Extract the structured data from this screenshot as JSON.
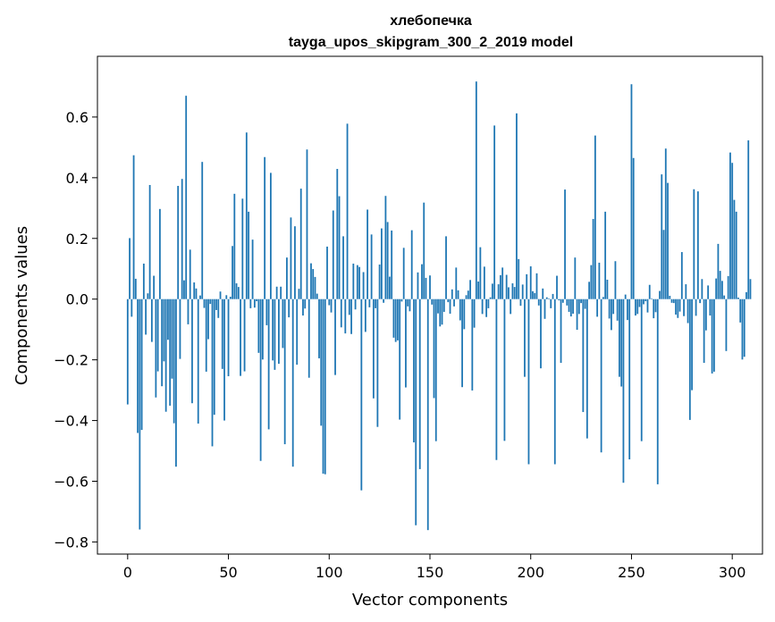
{
  "chart_data": {
    "type": "bar",
    "title": "хлебопечка",
    "subtitle": "tayga_upos_skipgram_300_2_2019 model",
    "xlabel": "Vector components",
    "ylabel": "Components values",
    "xlim": [
      -15,
      315
    ],
    "ylim": [
      -0.84,
      0.8
    ],
    "xticks": [
      0,
      50,
      100,
      150,
      200,
      250,
      300
    ],
    "yticks": [
      -0.8,
      -0.6,
      -0.4,
      -0.2,
      0.0,
      0.2,
      0.4,
      0.6
    ],
    "ytick_labels": [
      "−0.8",
      "−0.6",
      "−0.4",
      "−0.2",
      "0.0",
      "0.2",
      "0.4",
      "0.6"
    ],
    "bar_color": "#1f77b4",
    "grid": false,
    "values": [
      -0.347,
      0.201,
      -0.058,
      0.474,
      0.067,
      -0.441,
      -0.759,
      -0.431,
      0.117,
      -0.117,
      0.019,
      0.376,
      -0.141,
      0.077,
      -0.324,
      -0.238,
      0.297,
      -0.287,
      -0.205,
      -0.371,
      -0.134,
      -0.351,
      -0.262,
      -0.409,
      -0.552,
      0.373,
      -0.197,
      0.396,
      0.062,
      0.67,
      -0.083,
      0.163,
      -0.343,
      0.055,
      0.035,
      -0.41,
      0.012,
      0.452,
      -0.029,
      -0.239,
      -0.132,
      -0.016,
      -0.485,
      -0.381,
      -0.036,
      -0.062,
      0.025,
      -0.23,
      -0.4,
      0.013,
      -0.254,
      0.008,
      0.175,
      0.347,
      0.052,
      0.04,
      -0.253,
      0.331,
      -0.238,
      0.549,
      0.288,
      -0.03,
      0.196,
      -0.028,
      -0.007,
      -0.177,
      -0.533,
      -0.199,
      0.468,
      -0.086,
      -0.429,
      0.416,
      -0.202,
      -0.233,
      0.041,
      -0.213,
      0.041,
      -0.161,
      -0.478,
      0.137,
      -0.06,
      0.269,
      -0.552,
      0.24,
      -0.216,
      0.034,
      0.364,
      -0.054,
      -0.031,
      0.493,
      -0.259,
      0.118,
      0.099,
      0.073,
      0.018,
      -0.195,
      -0.417,
      -0.575,
      -0.577,
      0.173,
      -0.02,
      -0.044,
      0.292,
      -0.25,
      0.429,
      0.339,
      -0.093,
      0.207,
      -0.113,
      0.578,
      -0.052,
      -0.115,
      0.117,
      -0.034,
      0.112,
      0.106,
      -0.63,
      0.089,
      -0.108,
      0.295,
      -0.027,
      0.213,
      -0.327,
      -0.03,
      -0.421,
      0.114,
      0.233,
      -0.012,
      0.34,
      0.254,
      0.074,
      0.226,
      -0.127,
      -0.141,
      -0.136,
      -0.397,
      -0.008,
      0.169,
      -0.291,
      -0.024,
      -0.04,
      0.227,
      -0.472,
      -0.745,
      0.088,
      -0.56,
      0.115,
      0.318,
      0.07,
      -0.761,
      0.078,
      -0.018,
      -0.326,
      -0.468,
      -0.047,
      -0.09,
      -0.084,
      -0.042,
      0.207,
      -0.01,
      -0.048,
      0.032,
      -0.024,
      0.104,
      0.029,
      -0.07,
      -0.29,
      -0.099,
      0.013,
      0.028,
      0.063,
      -0.301,
      -0.094,
      0.717,
      0.058,
      0.171,
      -0.049,
      0.107,
      -0.059,
      -0.03,
      0.006,
      0.051,
      0.572,
      -0.53,
      0.049,
      0.079,
      0.104,
      -0.467,
      0.08,
      0.039,
      -0.049,
      0.052,
      0.04,
      0.612,
      0.132,
      -0.022,
      0.048,
      -0.256,
      0.082,
      -0.544,
      0.108,
      0.026,
      0.02,
      0.085,
      -0.021,
      -0.228,
      0.035,
      -0.065,
      0.006,
      0.002,
      -0.03,
      0.017,
      -0.544,
      0.077,
      -0.004,
      -0.21,
      -0.012,
      0.361,
      -0.021,
      -0.042,
      -0.057,
      -0.048,
      0.137,
      -0.101,
      -0.049,
      -0.013,
      -0.372,
      -0.032,
      -0.459,
      0.057,
      0.112,
      0.264,
      0.539,
      -0.058,
      0.12,
      -0.505,
      0.007,
      0.288,
      0.064,
      -0.064,
      -0.102,
      -0.049,
      0.125,
      -0.071,
      -0.256,
      -0.288,
      -0.605,
      0.015,
      -0.069,
      -0.528,
      0.708,
      0.465,
      -0.054,
      -0.049,
      -0.026,
      -0.468,
      -0.017,
      -0.007,
      -0.044,
      0.047,
      0.002,
      -0.063,
      -0.043,
      -0.61,
      0.027,
      0.411,
      0.228,
      0.496,
      0.383,
      0.011,
      -0.012,
      -0.013,
      -0.051,
      -0.062,
      -0.041,
      0.155,
      -0.056,
      0.049,
      -0.079,
      -0.398,
      -0.3,
      0.362,
      -0.055,
      0.355,
      -0.013,
      0.066,
      -0.21,
      -0.103,
      0.045,
      -0.054,
      -0.245,
      -0.239,
      0.068,
      0.182,
      0.093,
      0.06,
      0.012,
      -0.171,
      0.076,
      0.483,
      0.449,
      0.327,
      0.288,
      0.005,
      -0.077,
      -0.199,
      -0.19,
      0.023,
      0.523,
      0.066
    ]
  }
}
